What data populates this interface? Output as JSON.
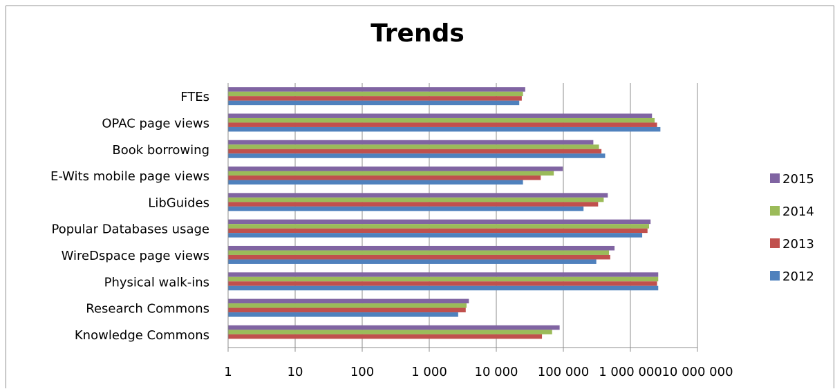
{
  "chart_data": {
    "type": "bar",
    "orientation": "horizontal",
    "title": "Trends",
    "xscale": "log",
    "xlim": [
      1,
      10000000
    ],
    "xticks": [
      "1",
      "10",
      "100",
      "1 000",
      "10 000",
      "100 000",
      "1 000 000",
      "10 000 000"
    ],
    "grid": true,
    "legend_position": "right",
    "categories": [
      "FTEs",
      "OPAC page views",
      "Book borrowing ",
      "E-Wits mobile page views",
      "LibGuides",
      "Popular Databases usage",
      "WireDspace page views",
      "Physical walk-ins",
      "Research Commons",
      "Knowledge Commons"
    ],
    "series": [
      {
        "name": "2015",
        "color": "#8064A2",
        "values": [
          27000,
          2100000,
          280000,
          98000,
          460000,
          2000000,
          580000,
          2600000,
          3900,
          88000
        ]
      },
      {
        "name": "2014",
        "color": "#9BBB59",
        "values": [
          25000,
          2300000,
          340000,
          72000,
          400000,
          1900000,
          480000,
          2600000,
          3600,
          68000
        ]
      },
      {
        "name": "2013",
        "color": "#C0504D",
        "values": [
          24000,
          2500000,
          370000,
          46000,
          330000,
          1800000,
          500000,
          2500000,
          3500,
          48000
        ]
      },
      {
        "name": "2012",
        "color": "#4F81BD",
        "values": [
          22000,
          2800000,
          420000,
          25000,
          200000,
          1500000,
          310000,
          2600000,
          2700,
          null
        ]
      }
    ]
  }
}
